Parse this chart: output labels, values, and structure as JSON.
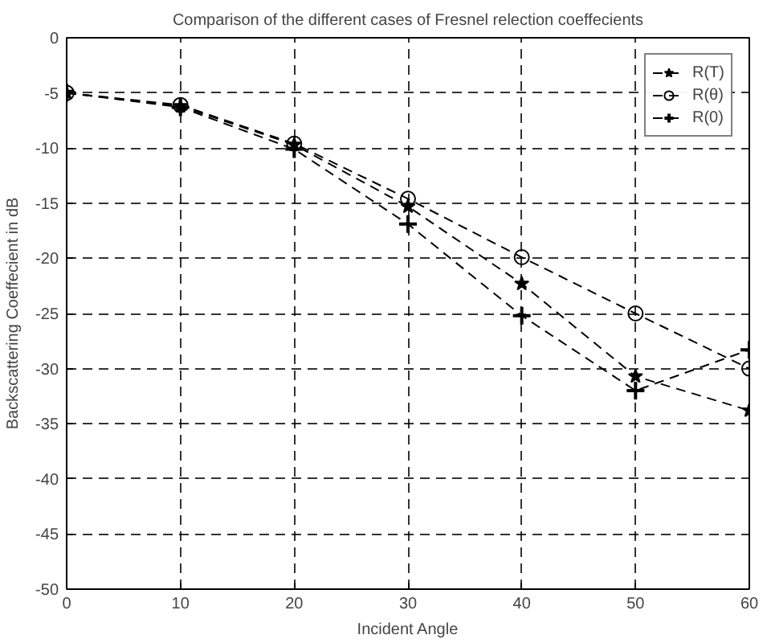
{
  "chart_data": {
    "type": "line",
    "title": "Comparison of the different cases of Fresnel relection coeffecients",
    "xlabel": "Incident Angle",
    "ylabel": "Backscattering Coeffecient in dB",
    "x": [
      0,
      10,
      20,
      30,
      40,
      50,
      60
    ],
    "series": [
      {
        "name": "R(T)",
        "color": "#000000",
        "marker": "star",
        "values": [
          -5,
          -6.2,
          -9.7,
          -15.3,
          -22.3,
          -30.7,
          -33.8
        ]
      },
      {
        "name": "R(θ)",
        "color": "#000000",
        "marker": "circle",
        "values": [
          -5,
          -6.1,
          -9.6,
          -14.6,
          -19.9,
          -25,
          -30
        ]
      },
      {
        "name": "R(0)",
        "color": "#000000",
        "marker": "cross",
        "values": [
          -5,
          -6.3,
          -10.1,
          -16.9,
          -25.2,
          -32,
          -28.3
        ]
      }
    ],
    "xlim": [
      0,
      60
    ],
    "xticks": [
      0,
      10,
      20,
      30,
      40,
      50,
      60
    ],
    "ylim": [
      -50,
      0
    ],
    "yticks": [
      -50,
      -45,
      -40,
      -35,
      -30,
      -25,
      -20,
      -15,
      -10,
      -5,
      0
    ],
    "grid": true,
    "legend": "top right",
    "line_style": "dashed"
  }
}
